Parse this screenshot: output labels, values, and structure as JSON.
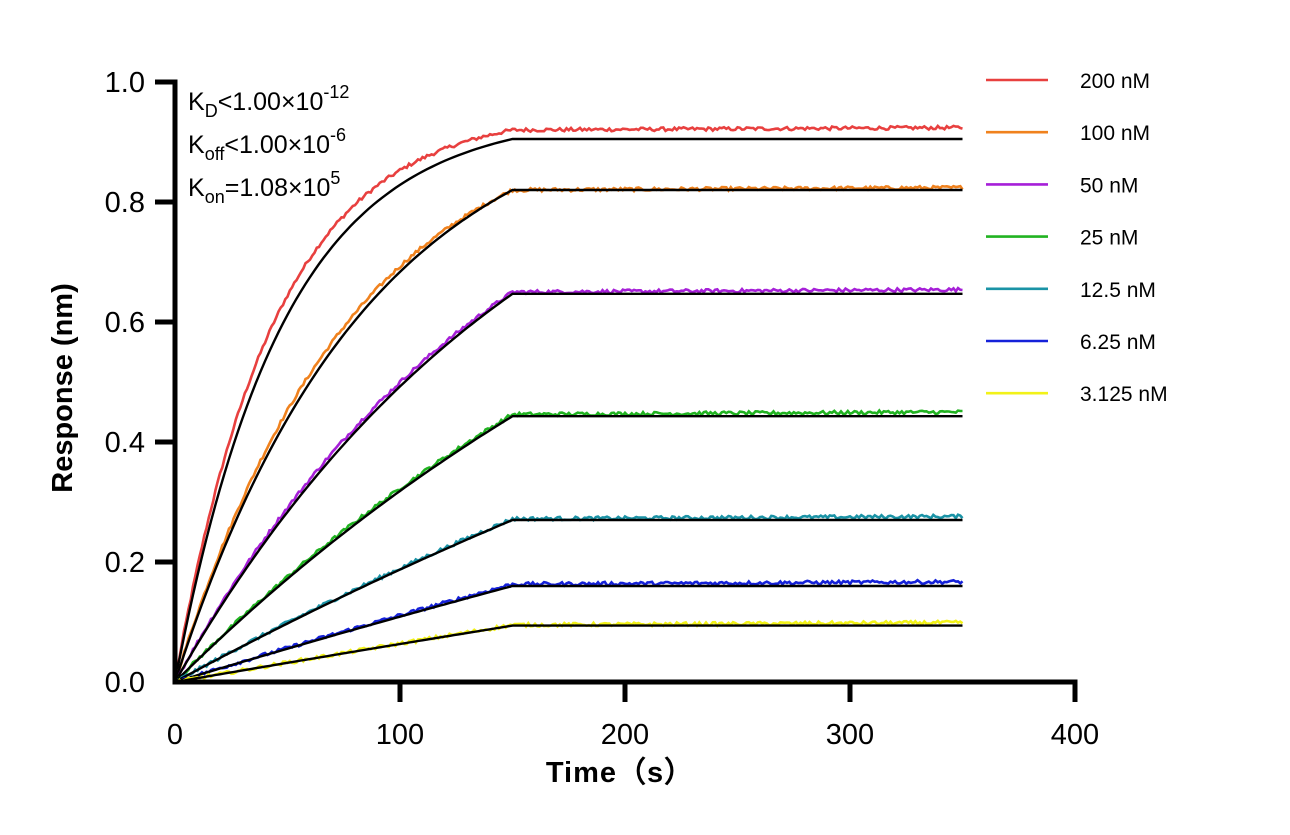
{
  "chart_data": {
    "type": "line",
    "title": "",
    "xlabel": "Time（s）",
    "ylabel": "Response (nm)",
    "xlim": [
      0,
      400
    ],
    "ylim": [
      0,
      1.0
    ],
    "x_ticks": [
      "0",
      "100",
      "200",
      "300",
      "400"
    ],
    "y_ticks": [
      "0.0",
      "0.2",
      "0.4",
      "0.6",
      "0.8",
      "1.0"
    ],
    "association_end": 150,
    "x_end": 350,
    "grid": false,
    "legend_position": "top-right",
    "annotations": [
      {
        "main": "K",
        "sub": "D",
        "rest": "<1.00×10",
        "sup": "-12"
      },
      {
        "main": "K",
        "sub": "off",
        "rest": "<1.00×10",
        "sup": "-6"
      },
      {
        "main": "K",
        "sub": "on",
        "rest": "=1.08×10",
        "sup": "5"
      }
    ],
    "series": [
      {
        "name": "200 nM",
        "color": "#e8403f",
        "plateau_measured": 0.92,
        "plateau_fit": 0.905,
        "rate": 0.0226
      },
      {
        "name": "100 nM",
        "color": "#f0821e",
        "plateau_measured": 0.82,
        "plateau_fit": 0.82,
        "rate": 0.0127
      },
      {
        "name": "50 nM",
        "color": "#a61fd8",
        "plateau_measured": 0.65,
        "plateau_fit": 0.647,
        "rate": 0.0066
      },
      {
        "name": "25 nM",
        "color": "#21b321",
        "plateau_measured": 0.446,
        "plateau_fit": 0.443,
        "rate": 0.0035
      },
      {
        "name": "12.5 nM",
        "color": "#1a93a6",
        "plateau_measured": 0.272,
        "plateau_fit": 0.27,
        "rate": 0.0018
      },
      {
        "name": "6.25 nM",
        "color": "#1521d9",
        "plateau_measured": 0.163,
        "plateau_fit": 0.16,
        "rate": 0.0009
      },
      {
        "name": "3.125 nM",
        "color": "#f2f218",
        "plateau_measured": 0.095,
        "plateau_fit": 0.094,
        "rate": 0.00045
      }
    ]
  }
}
